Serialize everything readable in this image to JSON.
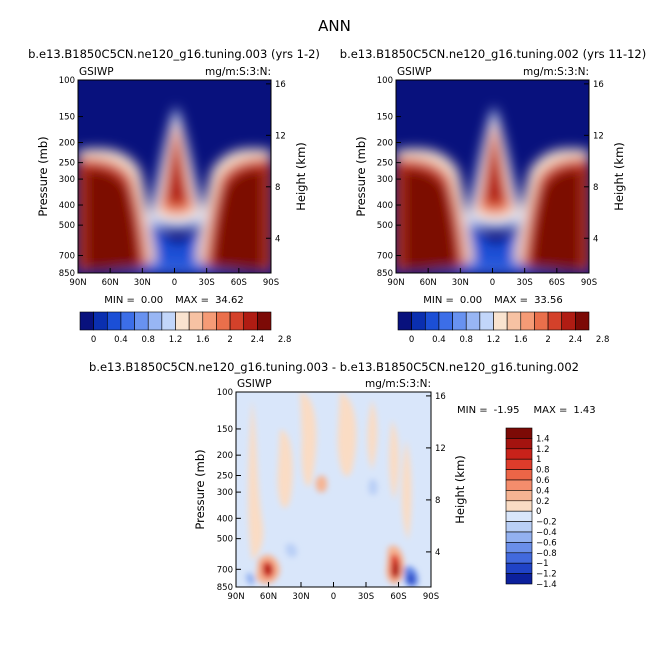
{
  "page_title": "ANN",
  "chart_data": [
    {
      "type": "heatmap",
      "title": "b.e13.B1850C5CN.ne120_g16.tuning.003 (yrs 1-2)",
      "variable": "GSIWP",
      "units": "mg/m:S:3:N:",
      "xlabel": "",
      "ylabel": "Pressure (mb)",
      "ylabel_right": "Height (km)",
      "x_ticks": [
        "90N",
        "60N",
        "30N",
        "0",
        "30S",
        "60S",
        "90S"
      ],
      "y_ticks": [
        "100",
        "150",
        "200",
        "250",
        "300",
        "400",
        "500",
        "700",
        "850"
      ],
      "y_ticks_right": [
        "16",
        "12",
        "8",
        "4"
      ],
      "min_label": "MIN =",
      "min_value": "0.00",
      "max_label": "MAX =",
      "max_value": "34.62",
      "colorbar_labels": [
        "0",
        "0.4",
        "0.8",
        "1.2",
        "1.6",
        "2",
        "2.4",
        "2.8"
      ]
    },
    {
      "type": "heatmap",
      "title": "b.e13.B1850C5CN.ne120_g16.tuning.002 (yrs 11-12)",
      "variable": "GSIWP",
      "units": "mg/m:S:3:N:",
      "xlabel": "",
      "ylabel": "Pressure (mb)",
      "ylabel_right": "Height (km)",
      "x_ticks": [
        "90N",
        "60N",
        "30N",
        "0",
        "30S",
        "60S",
        "90S"
      ],
      "y_ticks": [
        "100",
        "150",
        "200",
        "250",
        "300",
        "400",
        "500",
        "700",
        "850"
      ],
      "y_ticks_right": [
        "16",
        "12",
        "8",
        "4"
      ],
      "min_label": "MIN =",
      "min_value": "0.00",
      "max_label": "MAX =",
      "max_value": "33.56",
      "colorbar_labels": [
        "0",
        "0.4",
        "0.8",
        "1.2",
        "1.6",
        "2",
        "2.4",
        "2.8"
      ]
    },
    {
      "type": "heatmap",
      "title": "b.e13.B1850C5CN.ne120_g16.tuning.003 - b.e13.B1850C5CN.ne120_g16.tuning.002",
      "variable": "GSIWP",
      "units": "mg/m:S:3:N:",
      "xlabel": "",
      "ylabel": "Pressure (mb)",
      "ylabel_right": "Height (km)",
      "x_ticks": [
        "90N",
        "60N",
        "30N",
        "0",
        "30S",
        "60S",
        "90S"
      ],
      "y_ticks": [
        "100",
        "150",
        "200",
        "250",
        "300",
        "400",
        "500",
        "700",
        "850"
      ],
      "y_ticks_right": [
        "16",
        "12",
        "8",
        "4"
      ],
      "min_label": "MIN =",
      "min_value": "-1.95",
      "max_label": "MAX =",
      "max_value": "1.43",
      "colorbar_labels": [
        "1.4",
        "1.2",
        "1",
        "0.8",
        "0.6",
        "0.4",
        "0.2",
        "0",
        "−0.2",
        "−0.4",
        "−0.6",
        "−0.8",
        "−1",
        "−1.2",
        "−1.4"
      ]
    }
  ],
  "colors": {
    "seq": [
      "#08117d",
      "#0a2fb0",
      "#1b4fd6",
      "#3c6ee8",
      "#6892f0",
      "#98b6f4",
      "#c2d6fa",
      "#f9e3cf",
      "#f7c2a3",
      "#f59b76",
      "#ea6f4b",
      "#d4412a",
      "#b01c13",
      "#7c0a06"
    ],
    "div": [
      "#7c0a06",
      "#a4130f",
      "#c8221a",
      "#de3c2b",
      "#ec6547",
      "#f48d6c",
      "#f6b493",
      "#fadcc4",
      "#d9e6fa",
      "#b9cff6",
      "#93b1f0",
      "#6a8ee9",
      "#4269dd",
      "#2043c6",
      "#0c209c"
    ]
  }
}
